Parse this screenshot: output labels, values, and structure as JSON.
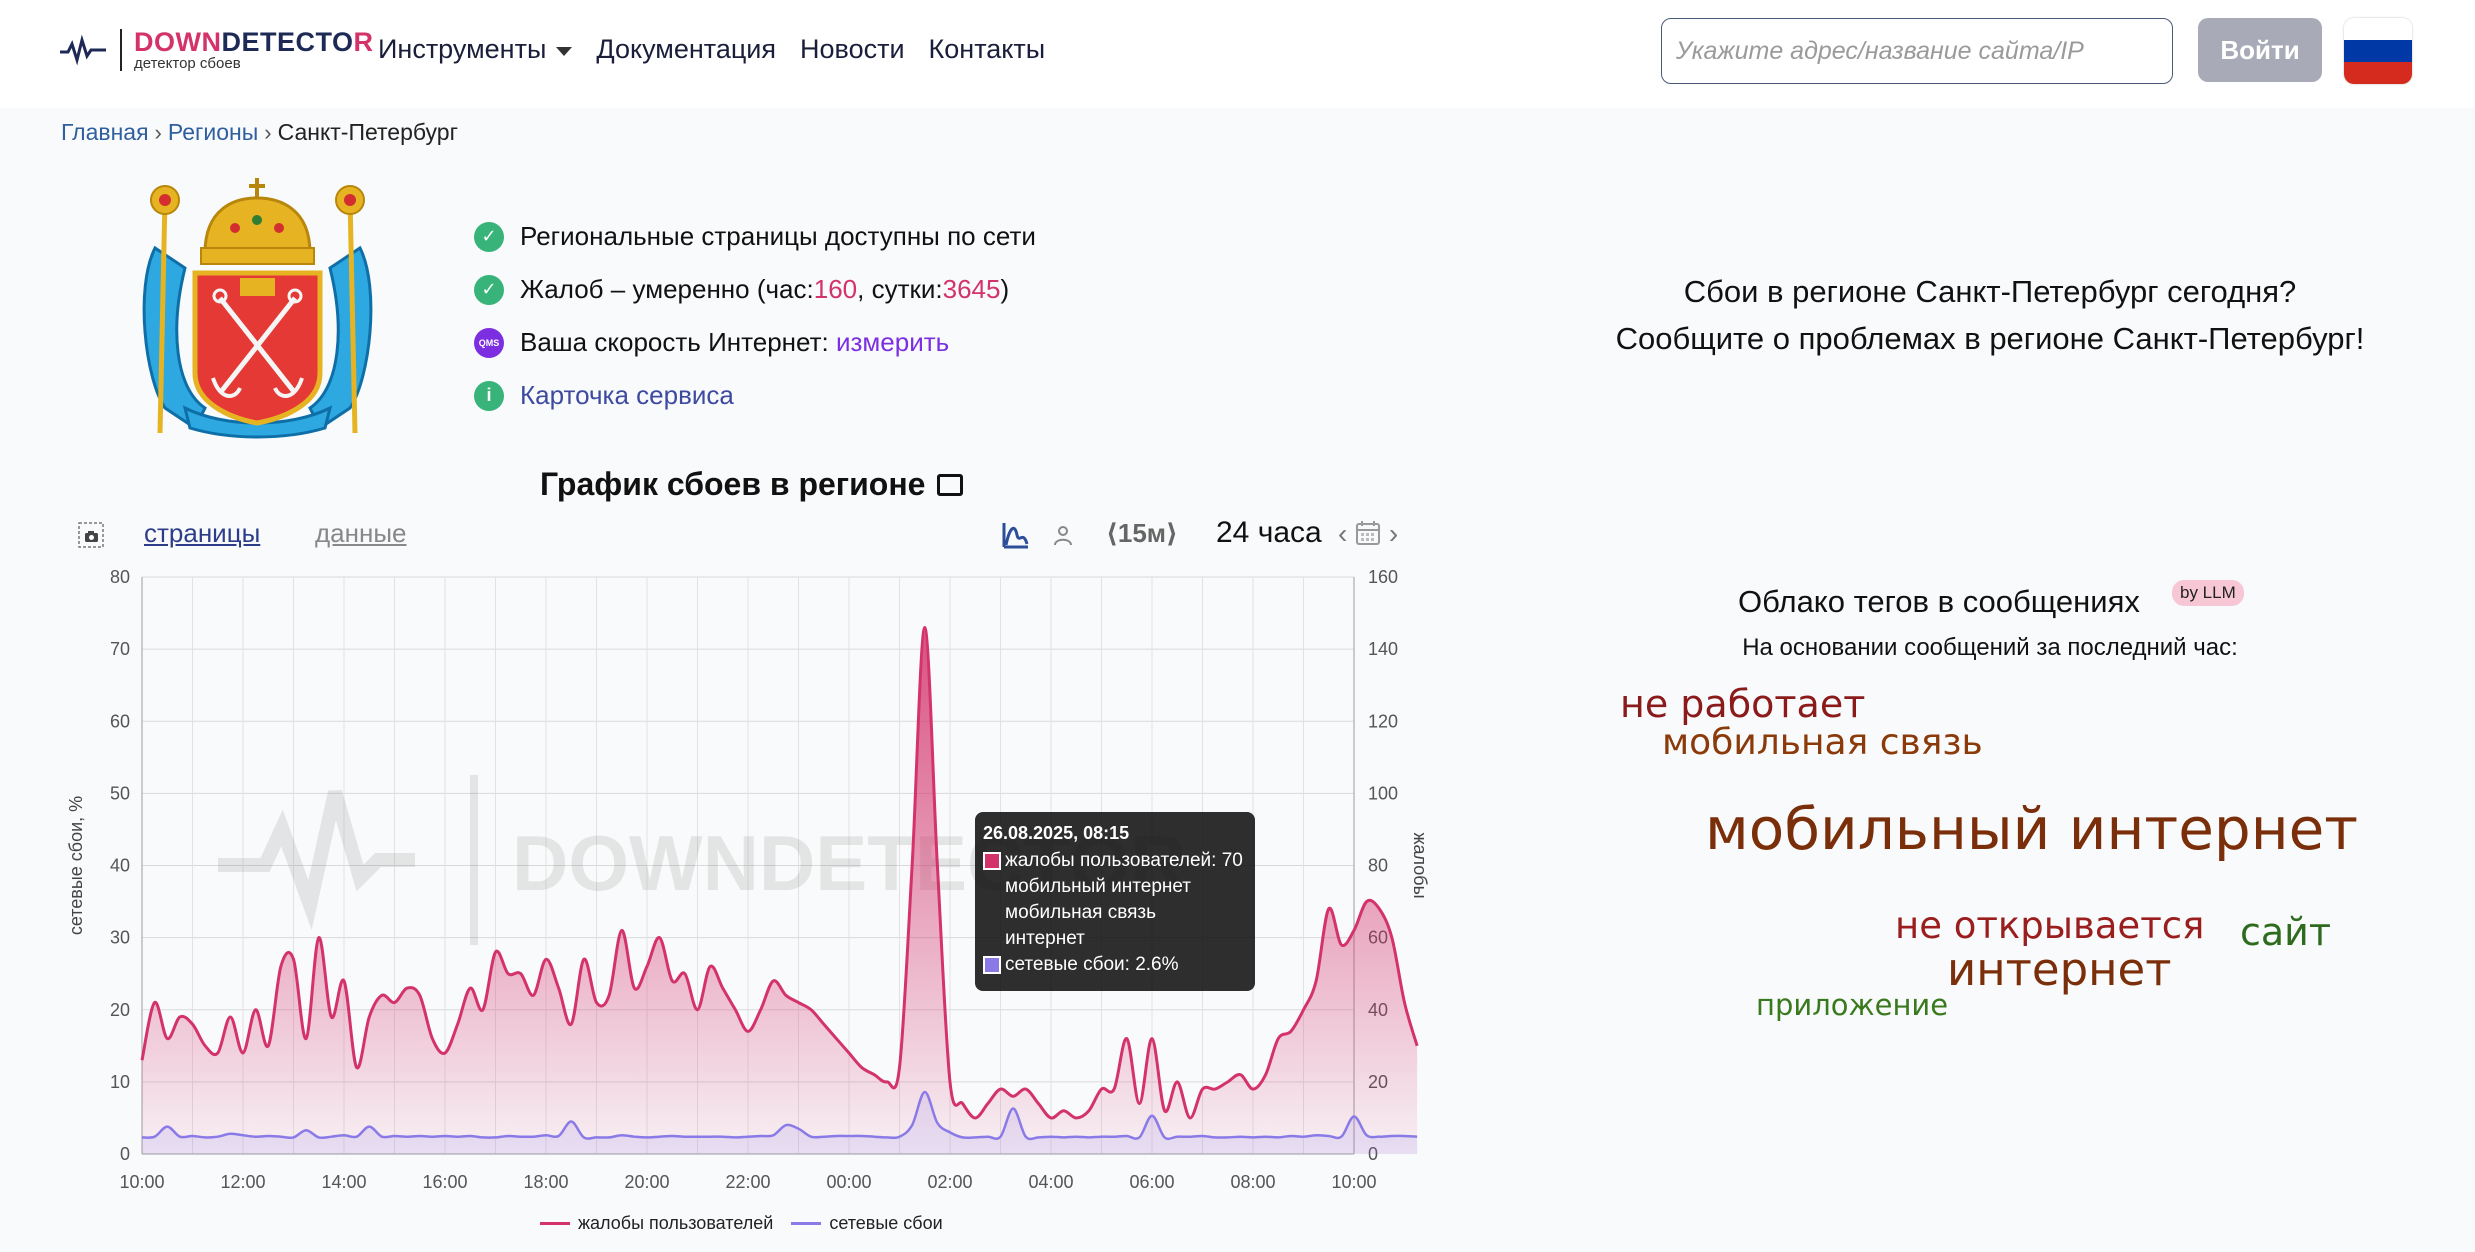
{
  "header": {
    "logo_brand_1": "DOWN",
    "logo_brand_2": "DETECTO",
    "logo_brand_3": "R",
    "logo_subtitle": "детектор сбоев",
    "nav": [
      {
        "label": "Инструменты"
      },
      {
        "label": "Документация"
      },
      {
        "label": "Новости"
      },
      {
        "label": "Контакты"
      }
    ],
    "search_placeholder": "Укажите адрес/название сайта/IP",
    "login_label": "Войти",
    "flag_colors": [
      "#ffffff",
      "#0039a6",
      "#d52b1e"
    ]
  },
  "breadcrumb": {
    "items": [
      "Главная",
      "Регионы"
    ],
    "current": "Санкт-Петербург"
  },
  "status": {
    "regional": "Региональные страницы доступны по сети",
    "complaints_prefix": "Жалоб – умеренно (час: ",
    "complaints_hour": "160",
    "complaints_mid": ", сутки: ",
    "complaints_day": "3645",
    "complaints_suffix": ")",
    "speed_prefix": "Ваша скорость Интернет: ",
    "speed_link": "измерить",
    "speed_icon_text": "QMS",
    "card_link": "Карточка сервиса"
  },
  "report": {
    "line1": "Сбои в регионе Санкт-Петербург сегодня?",
    "line2": "Сообщите о проблемах в регионе Санкт-Петербург!"
  },
  "cloud": {
    "title": "Облако тегов в сообщениях",
    "badge": "by LLM",
    "subtitle": "На основании сообщений за последний час:",
    "tags": [
      {
        "text": "не работает",
        "color": "#8b1a1a"
      },
      {
        "text": "мобильная связь",
        "color": "#8b3a0a"
      },
      {
        "text": "мобильный интернет",
        "color": "#7a2e0a"
      },
      {
        "text": "не открывается",
        "color": "#9a1e1e"
      },
      {
        "text": "сайт",
        "color": "#2e6b1e"
      },
      {
        "text": "интернет",
        "color": "#7a2e0a"
      },
      {
        "text": "приложение",
        "color": "#3a7a1e"
      }
    ]
  },
  "chart": {
    "title": "График сбоев в регионе",
    "tab_pages": "страницы",
    "tab_data": "данные",
    "interval": "⟨15м⟩",
    "range": "24 часа",
    "tooltip": {
      "title": "26.08.2025, 08:15",
      "line1": "жалобы пользователей: 70",
      "line2": "мобильный интернет",
      "line3": "мобильная связь",
      "line4": "интернет",
      "line5": "сетевые сбои: 2.6%"
    },
    "watermark": "DOWNDETECTOR"
  },
  "chart_data": {
    "type": "area",
    "ylabel": "сетевые сбои, %",
    "y2label": "жалобы",
    "ylim": [
      0,
      80
    ],
    "y2lim": [
      0,
      160
    ],
    "y_ticks": [
      0,
      10,
      20,
      30,
      40,
      50,
      60,
      70,
      80
    ],
    "y2_ticks": [
      0,
      20,
      40,
      60,
      80,
      100,
      120,
      140,
      160
    ],
    "x_ticks": [
      "10:00",
      "12:00",
      "14:00",
      "16:00",
      "18:00",
      "20:00",
      "22:00",
      "00:00",
      "02:00",
      "04:00",
      "06:00",
      "08:00",
      "10:00"
    ],
    "series": [
      {
        "name": "жалобы пользователей",
        "axis": "right",
        "color": "#d3336a",
        "values": [
          26,
          42,
          32,
          38,
          36,
          30,
          28,
          38,
          28,
          40,
          30,
          52,
          54,
          32,
          60,
          38,
          48,
          24,
          38,
          44,
          42,
          46,
          44,
          32,
          28,
          36,
          46,
          40,
          56,
          50,
          50,
          44,
          54,
          46,
          36,
          54,
          42,
          44,
          62,
          46,
          52,
          60,
          48,
          50,
          40,
          52,
          46,
          40,
          34,
          40,
          48,
          44,
          42,
          40,
          36,
          32,
          28,
          24,
          22,
          20,
          24,
          80,
          146,
          80,
          20,
          14,
          10,
          14,
          18,
          16,
          18,
          14,
          10,
          12,
          10,
          12,
          18,
          18,
          32,
          14,
          32,
          12,
          20,
          10,
          18,
          18,
          20,
          22,
          18,
          22,
          32,
          34,
          40,
          48,
          68,
          58,
          62,
          70,
          68,
          60,
          42,
          30
        ],
        "step_minutes": 15,
        "start": "10:00"
      },
      {
        "name": "сетевые сбои",
        "axis": "left",
        "color": "#8a7ae8",
        "values": [
          2.3,
          2.4,
          3.8,
          2.4,
          2.5,
          2.3,
          2.4,
          2.8,
          2.6,
          2.4,
          2.5,
          2.4,
          2.3,
          3.3,
          2.3,
          2.4,
          2.6,
          2.4,
          3.8,
          2.4,
          2.5,
          2.4,
          2.5,
          2.4,
          2.5,
          2.4,
          2.5,
          2.3,
          2.3,
          2.5,
          2.4,
          2.4,
          2.6,
          2.5,
          4.5,
          2.3,
          2.3,
          2.3,
          2.6,
          2.4,
          2.3,
          2.4,
          2.5,
          2.4,
          2.4,
          2.4,
          2.4,
          2.3,
          2.4,
          2.5,
          2.6,
          4.0,
          3.5,
          2.4,
          2.4,
          2.5,
          2.5,
          2.5,
          2.4,
          2.3,
          2.4,
          4.0,
          8.6,
          4.3,
          3.0,
          2.3,
          2.3,
          2.4,
          2.4,
          6.3,
          2.4,
          2.3,
          2.4,
          2.3,
          2.4,
          2.3,
          2.4,
          2.4,
          2.5,
          2.3,
          5.3,
          2.3,
          2.4,
          2.4,
          2.5,
          2.3,
          2.3,
          2.4,
          2.3,
          2.4,
          2.3,
          2.5,
          2.4,
          2.6,
          2.5,
          2.4,
          5.2,
          2.6,
          2.4,
          2.5,
          2.5,
          2.4
        ],
        "step_minutes": 15,
        "start": "10:00"
      }
    ],
    "legend": [
      "жалобы пользователей",
      "сетевые сбои"
    ],
    "grid": true
  }
}
